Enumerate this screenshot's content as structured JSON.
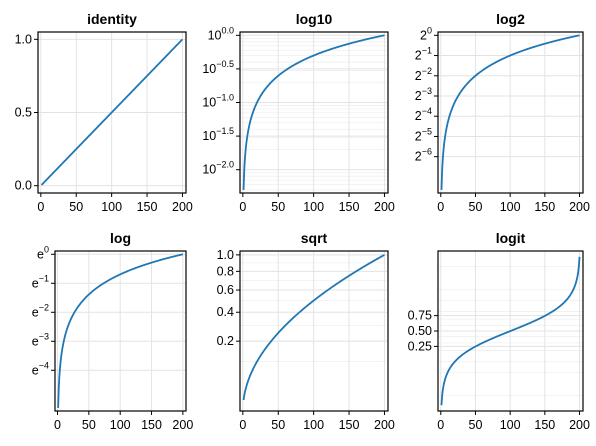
{
  "colors": {
    "line": "#1f77b4"
  },
  "chart_data": [
    {
      "type": "line",
      "title": "identity",
      "scale": "identity",
      "x": [
        1,
        25,
        50,
        75,
        100,
        125,
        150,
        175,
        200
      ],
      "y": [
        0.005,
        0.125,
        0.25,
        0.375,
        0.5,
        0.625,
        0.75,
        0.875,
        1.0
      ],
      "xlim": [
        -4,
        205
      ],
      "ylim": [
        -0.05,
        1.05
      ],
      "xticks": [
        0,
        50,
        100,
        150,
        200
      ],
      "yticks": [
        {
          "value": 0.0,
          "label": "0.0"
        },
        {
          "value": 0.5,
          "label": "0.5"
        },
        {
          "value": 1.0,
          "label": "1.0"
        }
      ]
    },
    {
      "type": "line",
      "title": "log10",
      "scale": "log10",
      "x": [
        1,
        25,
        50,
        75,
        100,
        125,
        150,
        175,
        200
      ],
      "y": [
        0.005,
        0.125,
        0.25,
        0.375,
        0.5,
        0.625,
        0.75,
        0.875,
        1.0
      ],
      "xlim": [
        -4,
        205
      ],
      "ylim": [
        0.0045,
        1.12
      ],
      "xticks": [
        0,
        50,
        100,
        150,
        200
      ],
      "yticks": [
        {
          "value": 1.0,
          "base": "10",
          "exp": "0.0"
        },
        {
          "value": 0.316228,
          "base": "10",
          "exp": "−0.5"
        },
        {
          "value": 0.1,
          "base": "10",
          "exp": "−1.0"
        },
        {
          "value": 0.0316228,
          "base": "10",
          "exp": "−1.5"
        },
        {
          "value": 0.01,
          "base": "10",
          "exp": "−2.0"
        }
      ]
    },
    {
      "type": "line",
      "title": "log2",
      "scale": "log2",
      "x": [
        1,
        25,
        50,
        75,
        100,
        125,
        150,
        175,
        200
      ],
      "y": [
        0.005,
        0.125,
        0.25,
        0.375,
        0.5,
        0.625,
        0.75,
        0.875,
        1.0
      ],
      "xlim": [
        -4,
        205
      ],
      "ylim": [
        0.0045,
        1.12
      ],
      "xticks": [
        0,
        50,
        100,
        150,
        200
      ],
      "yticks": [
        {
          "value": 1,
          "base": "2",
          "exp": "0"
        },
        {
          "value": 0.5,
          "base": "2",
          "exp": "−1"
        },
        {
          "value": 0.25,
          "base": "2",
          "exp": "−2"
        },
        {
          "value": 0.125,
          "base": "2",
          "exp": "−3"
        },
        {
          "value": 0.0625,
          "base": "2",
          "exp": "−4"
        },
        {
          "value": 0.03125,
          "base": "2",
          "exp": "−5"
        },
        {
          "value": 0.015625,
          "base": "2",
          "exp": "−6"
        }
      ]
    },
    {
      "type": "line",
      "title": "log",
      "scale": "ln",
      "x": [
        1,
        25,
        50,
        75,
        100,
        125,
        150,
        175,
        200
      ],
      "y": [
        0.005,
        0.125,
        0.25,
        0.375,
        0.5,
        0.625,
        0.75,
        0.875,
        1.0
      ],
      "xlim": [
        -4,
        205
      ],
      "ylim": [
        0.0045,
        1.12
      ],
      "xticks": [
        0,
        50,
        100,
        150,
        200
      ],
      "yticks": [
        {
          "value": 1,
          "base": "e",
          "exp": "0"
        },
        {
          "value": 0.367879,
          "base": "e",
          "exp": "−1"
        },
        {
          "value": 0.135335,
          "base": "e",
          "exp": "−2"
        },
        {
          "value": 0.049787,
          "base": "e",
          "exp": "−3"
        },
        {
          "value": 0.018316,
          "base": "e",
          "exp": "−4"
        }
      ]
    },
    {
      "type": "line",
      "title": "sqrt",
      "scale": "sqrt",
      "x": [
        1,
        25,
        50,
        75,
        100,
        125,
        150,
        175,
        200
      ],
      "y": [
        0.005,
        0.125,
        0.25,
        0.375,
        0.5,
        0.625,
        0.75,
        0.875,
        1.0
      ],
      "xlim": [
        -4,
        205
      ],
      "ylim": [
        0.0,
        1.05
      ],
      "xticks": [
        0,
        50,
        100,
        150,
        200
      ],
      "yticks": [
        {
          "value": 0.2,
          "label": "0.2"
        },
        {
          "value": 0.4,
          "label": "0.4"
        },
        {
          "value": 0.6,
          "label": "0.6"
        },
        {
          "value": 0.8,
          "label": "0.8"
        },
        {
          "value": 1.0,
          "label": "1.0"
        }
      ]
    },
    {
      "type": "line",
      "title": "logit",
      "scale": "logit",
      "x": [
        1,
        25,
        50,
        75,
        100,
        125,
        150,
        175,
        200
      ],
      "y": [
        0.005,
        0.125,
        0.25,
        0.375,
        0.5,
        0.625,
        0.75,
        0.875,
        0.995
      ],
      "xlim": [
        -4,
        205
      ],
      "ylim": [
        0.0033,
        0.9967
      ],
      "xticks": [
        0,
        50,
        100,
        150,
        200
      ],
      "yticks": [
        {
          "value": 0.25,
          "label": "0.25"
        },
        {
          "value": 0.5,
          "label": "0.50"
        },
        {
          "value": 0.75,
          "label": "0.75"
        }
      ]
    }
  ]
}
